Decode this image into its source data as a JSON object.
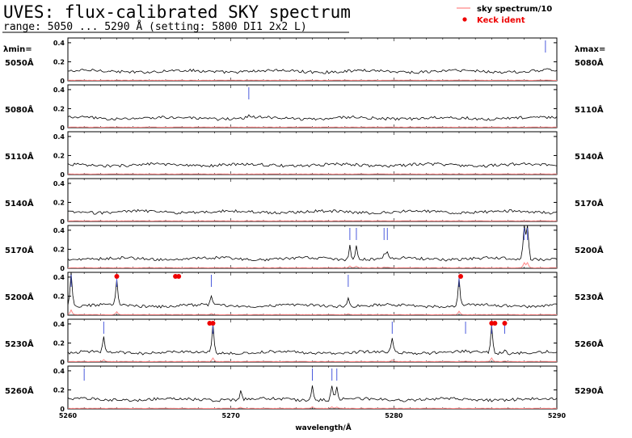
{
  "header": {
    "title": "UVES: flux-calibrated SKY spectrum",
    "subtitle": "range: 5050 ... 5290 Å (setting: 5800 DI1 2x2 L)"
  },
  "legend": {
    "sky_label": "sky spectrum/10",
    "keck_label": "Keck ident",
    "sky_color": "#ff8888",
    "keck_color": "#ee0000",
    "spectrum_color": "#000000",
    "line_marker_color": "#4b5bdc"
  },
  "labels": {
    "lambda_min": "λmin=",
    "lambda_max": "λmax=",
    "xlabel": "wavelength/Å"
  },
  "chart_data": {
    "type": "line",
    "panel_count": 8,
    "ylim": [
      0,
      0.45
    ],
    "yticks": [
      "0",
      "0.2",
      "0.4"
    ],
    "panels": [
      {
        "min_label": "5050Å",
        "max_label": "5080Å",
        "wmin": 5050,
        "wmax": 5080,
        "baseline": 0.1,
        "peaks": [
          {
            "w": 5079.3,
            "h": 0.02
          }
        ],
        "markers": [
          5079.3
        ],
        "keck": []
      },
      {
        "min_label": "5080Å",
        "max_label": "5110Å",
        "wmin": 5080,
        "wmax": 5110,
        "baseline": 0.1,
        "peaks": [
          {
            "w": 5091.1,
            "h": 0.02
          }
        ],
        "markers": [
          5091.1
        ],
        "keck": []
      },
      {
        "min_label": "5110Å",
        "max_label": "5140Å",
        "wmin": 5110,
        "wmax": 5140,
        "baseline": 0.1,
        "peaks": [],
        "markers": [],
        "keck": []
      },
      {
        "min_label": "5140Å",
        "max_label": "5170Å",
        "wmin": 5140,
        "wmax": 5170,
        "baseline": 0.1,
        "peaks": [],
        "markers": [],
        "keck": []
      },
      {
        "min_label": "5170Å",
        "max_label": "5200Å",
        "wmin": 5170,
        "wmax": 5200,
        "baseline": 0.1,
        "peaks": [
          {
            "w": 5187.3,
            "h": 0.16
          },
          {
            "w": 5187.7,
            "h": 0.15
          },
          {
            "w": 5189.4,
            "h": 0.06
          },
          {
            "w": 5189.6,
            "h": 0.06
          },
          {
            "w": 5198.0,
            "h": 0.45
          },
          {
            "w": 5198.2,
            "h": 0.45
          }
        ],
        "markers": [
          5187.3,
          5187.7,
          5189.4,
          5189.6,
          5198.0,
          5198.2
        ],
        "keck": []
      },
      {
        "min_label": "5200Å",
        "max_label": "5230Å",
        "wmin": 5200,
        "wmax": 5230,
        "baseline": 0.1,
        "peaks": [
          {
            "w": 5200.2,
            "h": 0.4
          },
          {
            "w": 5203.0,
            "h": 0.26
          },
          {
            "w": 5208.8,
            "h": 0.1
          },
          {
            "w": 5217.2,
            "h": 0.08
          },
          {
            "w": 5224.0,
            "h": 0.29
          }
        ],
        "markers": [
          5200.2,
          5203.0,
          5208.8,
          5217.2,
          5224.0
        ],
        "keck": [
          5203.0,
          5206.6,
          5206.8,
          5224.1
        ]
      },
      {
        "min_label": "5230Å",
        "max_label": "5260Å",
        "wmin": 5230,
        "wmax": 5260,
        "baseline": 0.1,
        "peaks": [
          {
            "w": 5232.2,
            "h": 0.16
          },
          {
            "w": 5238.9,
            "h": 0.3
          },
          {
            "w": 5249.9,
            "h": 0.14
          },
          {
            "w": 5254.4,
            "h": 0.03
          },
          {
            "w": 5256.0,
            "h": 0.3
          },
          {
            "w": 5256.8,
            "h": 0.05
          }
        ],
        "markers": [
          5232.2,
          5238.9,
          5249.9,
          5254.4,
          5256.0,
          5256.8
        ],
        "keck": [
          5238.7,
          5238.9,
          5256.0,
          5256.2,
          5256.8
        ]
      },
      {
        "min_label": "5260Å",
        "max_label": "5290Å",
        "wmin": 5260,
        "wmax": 5290,
        "baseline": 0.1,
        "peaks": [
          {
            "w": 5270.6,
            "h": 0.08
          },
          {
            "w": 5275.0,
            "h": 0.15
          },
          {
            "w": 5276.2,
            "h": 0.14
          },
          {
            "w": 5276.5,
            "h": 0.12
          }
        ],
        "markers": [
          5261.0,
          5275.0,
          5276.2,
          5276.5
        ],
        "keck": []
      }
    ],
    "xaxis": {
      "wmin": 5260,
      "wmax": 5290,
      "ticks": [
        "5260",
        "5270",
        "5280",
        "5290"
      ],
      "tick_values": [
        5260,
        5270,
        5280,
        5290
      ]
    }
  }
}
